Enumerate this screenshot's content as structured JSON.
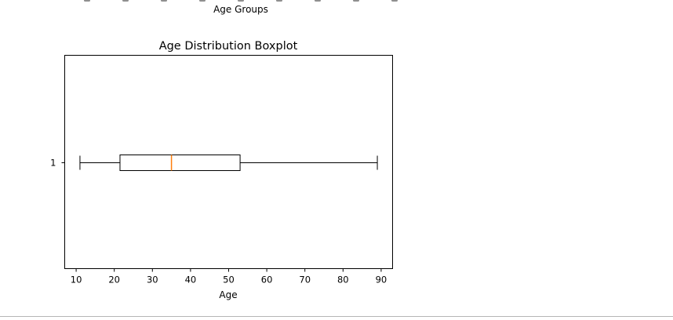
{
  "previous_chart": {
    "xlabel": "Age Groups",
    "tick_label_colour": "#333333"
  },
  "chart_data": {
    "type": "boxplot",
    "orientation": "horizontal",
    "title": "Age Distribution Boxplot",
    "xlabel": "Age",
    "ylabel": "",
    "xlim": [
      7,
      93
    ],
    "xticks": [
      10,
      20,
      30,
      40,
      50,
      60,
      70,
      80,
      90
    ],
    "categories": [
      "1"
    ],
    "boxes": [
      {
        "label": "1",
        "whislo": 11,
        "q1": 21.5,
        "median": 35,
        "q3": 53,
        "whishi": 89
      }
    ],
    "colors": {
      "box": "#000000",
      "median": "#ff7f0e"
    },
    "grid": false
  }
}
